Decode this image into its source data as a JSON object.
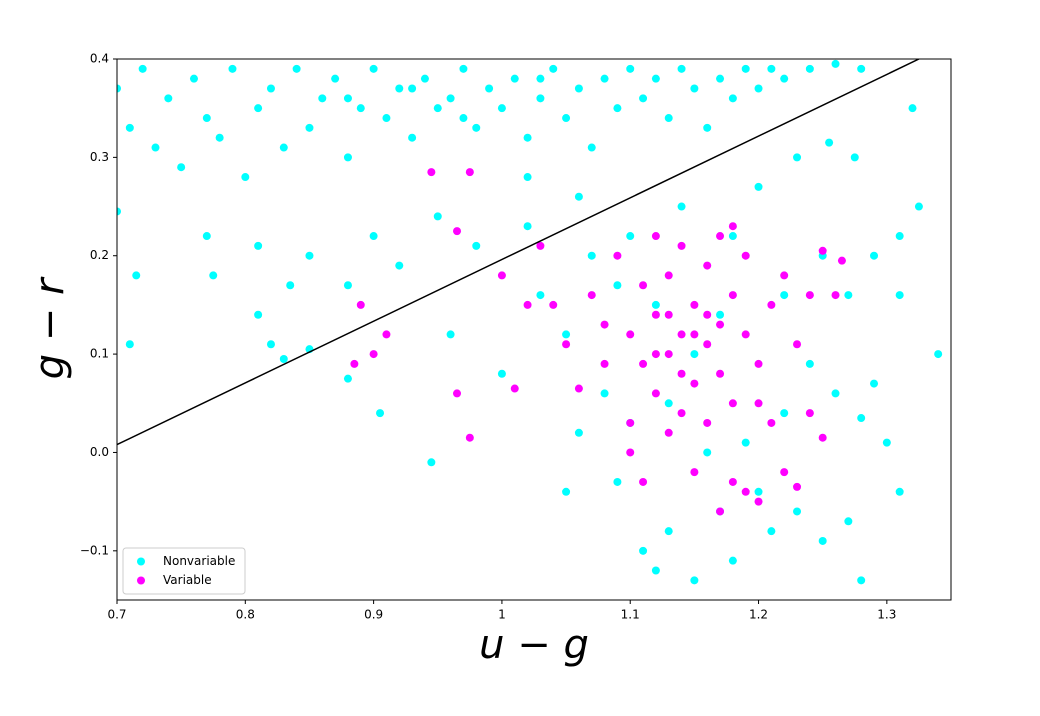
{
  "chart_data": {
    "type": "scatter",
    "x_label": "u − g",
    "y_label": "g − r",
    "xlim": [
      0.7,
      1.35
    ],
    "ylim": [
      -0.15,
      0.4
    ],
    "xticks": [
      0.7,
      0.8,
      0.9,
      1.0,
      1.1,
      1.2,
      1.3
    ],
    "yticks": [
      {
        "value": -0.1,
        "label": "−0.1"
      },
      {
        "value": 0,
        "label": "0.0"
      },
      0.1,
      0.2,
      0.3,
      0.4
    ],
    "legend": "lower left",
    "reference_line": {
      "color": "#000000",
      "x": [
        0.7,
        1.325
      ],
      "y": [
        0.008,
        0.4
      ]
    },
    "series": [
      {
        "name": "Nonvariable",
        "color": "#00ffff",
        "x": [
          0.7,
          0.71,
          0.72,
          0.73,
          0.74,
          0.75,
          0.76,
          0.77,
          0.78,
          0.79,
          0.8,
          0.81,
          0.82,
          0.83,
          0.84,
          0.85,
          0.86,
          0.87,
          0.88,
          0.89,
          0.9,
          0.91,
          0.92,
          0.93,
          0.94,
          0.95,
          0.96,
          0.97,
          0.98,
          0.99,
          1.0,
          1.01,
          1.02,
          1.03,
          1.04,
          1.05,
          1.06,
          1.07,
          1.08,
          1.09,
          1.1,
          1.11,
          1.12,
          1.13,
          1.14,
          1.15,
          1.16,
          1.17,
          1.18,
          1.19,
          1.2,
          1.21,
          1.22,
          1.24,
          1.26,
          1.28,
          0.88,
          0.93,
          0.97,
          1.03,
          0.7,
          0.715,
          0.71,
          0.77,
          0.775,
          0.81,
          0.81,
          0.82,
          0.83,
          0.835,
          0.85,
          0.85,
          0.88,
          0.88,
          0.9,
          0.905,
          0.92,
          0.945,
          0.95,
          0.96,
          0.98,
          1.0,
          1.02,
          1.03,
          1.05,
          1.05,
          1.06,
          1.07,
          1.08,
          1.09,
          1.1,
          1.1,
          1.11,
          1.12,
          1.13,
          1.15,
          1.16,
          1.17,
          1.18,
          1.19,
          1.2,
          1.21,
          1.22,
          1.23,
          1.24,
          1.25,
          1.26,
          1.27,
          1.27,
          1.28,
          1.29,
          1.3,
          1.31,
          1.31,
          1.32,
          1.325,
          1.34,
          1.29,
          1.25,
          1.23,
          1.2,
          1.18,
          1.14,
          1.12,
          1.15,
          1.09,
          1.13,
          1.17,
          1.06,
          1.02,
          1.255,
          1.275,
          1.31,
          1.28,
          1.22
        ],
        "y": [
          0.37,
          0.33,
          0.39,
          0.31,
          0.36,
          0.29,
          0.38,
          0.34,
          0.32,
          0.39,
          0.28,
          0.35,
          0.37,
          0.31,
          0.39,
          0.33,
          0.36,
          0.38,
          0.3,
          0.35,
          0.39,
          0.34,
          0.37,
          0.32,
          0.38,
          0.35,
          0.36,
          0.39,
          0.33,
          0.37,
          0.35,
          0.38,
          0.32,
          0.36,
          0.39,
          0.34,
          0.37,
          0.31,
          0.38,
          0.35,
          0.39,
          0.36,
          0.38,
          0.34,
          0.39,
          0.37,
          0.33,
          0.38,
          0.36,
          0.39,
          0.37,
          0.39,
          0.38,
          0.39,
          0.395,
          0.39,
          0.36,
          0.37,
          0.34,
          0.38,
          0.245,
          0.18,
          0.11,
          0.22,
          0.18,
          0.21,
          0.14,
          0.11,
          0.095,
          0.17,
          0.105,
          0.2,
          0.17,
          0.075,
          0.22,
          0.04,
          0.19,
          -0.01,
          0.24,
          0.12,
          0.21,
          0.08,
          0.23,
          0.16,
          0.12,
          -0.04,
          0.02,
          0.2,
          0.06,
          -0.03,
          0.22,
          0.03,
          -0.1,
          -0.12,
          -0.08,
          -0.13,
          0.0,
          -0.06,
          -0.11,
          0.01,
          -0.04,
          -0.08,
          0.04,
          -0.06,
          0.09,
          -0.09,
          0.06,
          -0.07,
          0.16,
          -0.13,
          0.2,
          0.01,
          -0.04,
          0.16,
          0.35,
          0.25,
          0.1,
          0.07,
          0.2,
          0.3,
          0.27,
          0.22,
          0.25,
          0.15,
          0.1,
          0.17,
          0.05,
          0.14,
          0.26,
          0.28,
          0.315,
          0.3,
          0.22,
          0.035,
          0.16
        ]
      },
      {
        "name": "Variable",
        "color": "#ff00ff",
        "x": [
          0.89,
          0.885,
          0.91,
          0.9,
          0.945,
          0.965,
          0.975,
          0.965,
          0.975,
          1.0,
          1.01,
          1.02,
          1.03,
          1.04,
          1.05,
          1.06,
          1.07,
          1.08,
          1.09,
          1.1,
          1.1,
          1.11,
          1.11,
          1.12,
          1.12,
          1.12,
          1.13,
          1.13,
          1.13,
          1.14,
          1.14,
          1.14,
          1.15,
          1.15,
          1.15,
          1.16,
          1.16,
          1.16,
          1.17,
          1.17,
          1.17,
          1.18,
          1.18,
          1.18,
          1.19,
          1.19,
          1.2,
          1.2,
          1.21,
          1.21,
          1.22,
          1.22,
          1.23,
          1.23,
          1.24,
          1.24,
          1.25,
          1.25,
          1.26,
          1.265,
          1.11,
          1.13,
          1.14,
          1.16,
          1.12,
          1.15,
          1.17,
          1.19,
          1.18,
          1.2,
          1.1,
          1.08
        ],
        "y": [
          0.15,
          0.09,
          0.12,
          0.1,
          0.285,
          0.06,
          0.015,
          0.225,
          0.285,
          0.18,
          0.065,
          0.15,
          0.21,
          0.15,
          0.11,
          0.065,
          0.16,
          0.09,
          0.2,
          0.12,
          0.03,
          0.17,
          -0.03,
          0.14,
          0.06,
          0.22,
          0.1,
          0.02,
          0.18,
          0.12,
          0.04,
          0.21,
          0.15,
          0.07,
          -0.02,
          0.11,
          0.19,
          0.03,
          0.13,
          0.08,
          0.22,
          0.16,
          0.05,
          -0.03,
          0.12,
          0.2,
          0.09,
          -0.05,
          0.15,
          0.03,
          0.18,
          -0.02,
          0.11,
          -0.035,
          0.16,
          0.04,
          0.205,
          0.015,
          0.16,
          0.195,
          0.09,
          0.14,
          0.08,
          0.14,
          0.1,
          0.12,
          -0.06,
          -0.04,
          0.23,
          0.05,
          0.0,
          0.13
        ]
      }
    ]
  }
}
